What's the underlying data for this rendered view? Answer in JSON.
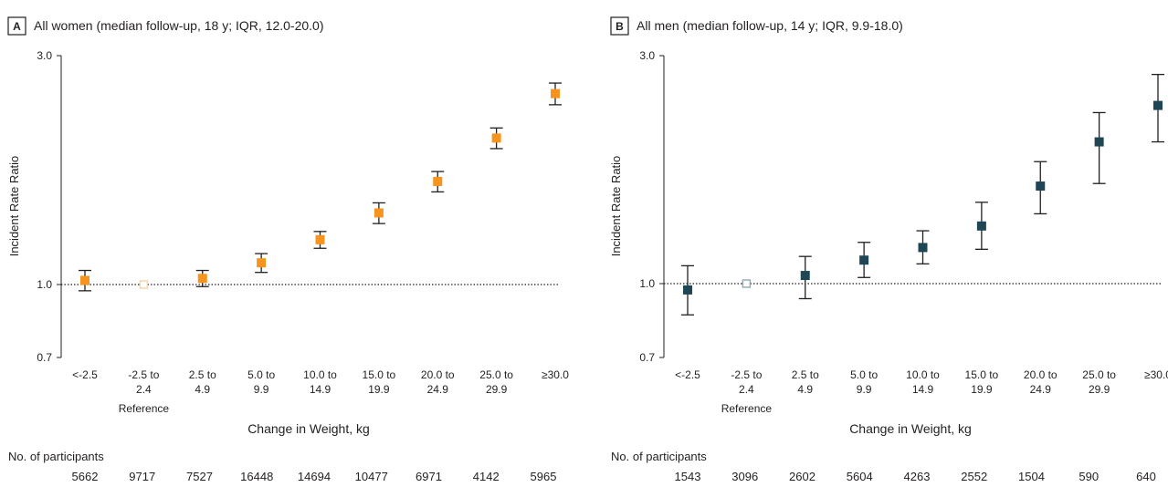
{
  "chart_data": [
    {
      "type": "scatter",
      "panel": "A",
      "title": "All women (median follow-up, 18 y; IQR, 12.0-20.0)",
      "xlabel": "Change in Weight, kg",
      "ylabel": "Incident Rate Ratio",
      "y_scale": "log",
      "ylim": [
        0.7,
        3.0
      ],
      "y_ticks": [
        "0.7",
        "1.0",
        "3.0"
      ],
      "reference_line": 1.0,
      "categories": [
        [
          "<-2.5"
        ],
        [
          "-2.5 to",
          "2.4"
        ],
        [
          "2.5 to",
          "4.9"
        ],
        [
          "5.0 to",
          "9.9"
        ],
        [
          "10.0 to",
          "14.9"
        ],
        [
          "15.0 to",
          "19.9"
        ],
        [
          "20.0 to",
          "24.9"
        ],
        [
          "25.0 to",
          "29.9"
        ],
        [
          "≥30.0"
        ]
      ],
      "reference_label": "Reference",
      "reference_index": 1,
      "series": [
        {
          "values": [
            1.02,
            1.0,
            1.03,
            1.11,
            1.24,
            1.41,
            1.64,
            2.02,
            2.5
          ],
          "lower": [
            0.97,
            1.0,
            0.99,
            1.06,
            1.19,
            1.34,
            1.56,
            1.92,
            2.37
          ],
          "upper": [
            1.07,
            1.0,
            1.07,
            1.16,
            1.29,
            1.48,
            1.72,
            2.12,
            2.63
          ]
        }
      ],
      "marker_color": "#f7941d",
      "reference_marker_color": "#fbd3a0",
      "participants_label": "No. of participants",
      "participants": [
        "5662",
        "9717",
        "7527",
        "16448",
        "14694",
        "10477",
        "6971",
        "4142",
        "5965"
      ]
    },
    {
      "type": "scatter",
      "panel": "B",
      "title": "All men (median follow-up, 14 y; IQR, 9.9-18.0)",
      "xlabel": "Change in Weight, kg",
      "ylabel": "Incident Rate Ratio",
      "y_scale": "log",
      "ylim": [
        0.7,
        3.0
      ],
      "y_ticks": [
        "0.7",
        "1.0",
        "3.0"
      ],
      "reference_line": 1.0,
      "categories": [
        [
          "<-2.5"
        ],
        [
          "-2.5 to",
          "2.4"
        ],
        [
          "2.5 to",
          "4.9"
        ],
        [
          "5.0 to",
          "9.9"
        ],
        [
          "10.0 to",
          "14.9"
        ],
        [
          "15.0 to",
          "19.9"
        ],
        [
          "20.0 to",
          "24.9"
        ],
        [
          "25.0 to",
          "29.9"
        ],
        [
          "≥30.0"
        ]
      ],
      "reference_label": "Reference",
      "reference_index": 1,
      "series": [
        {
          "values": [
            0.97,
            1.0,
            1.04,
            1.12,
            1.19,
            1.32,
            1.6,
            1.98,
            2.36
          ],
          "lower": [
            0.86,
            1.0,
            0.93,
            1.03,
            1.1,
            1.18,
            1.4,
            1.62,
            1.98
          ],
          "upper": [
            1.09,
            1.0,
            1.14,
            1.22,
            1.29,
            1.48,
            1.8,
            2.28,
            2.74
          ]
        }
      ],
      "marker_color": "#1e4655",
      "reference_marker_color": "#8fa9b3",
      "participants_label": "No. of participants",
      "participants": [
        "1543",
        "3096",
        "2602",
        "5604",
        "4263",
        "2552",
        "1504",
        "590",
        "640"
      ]
    }
  ]
}
